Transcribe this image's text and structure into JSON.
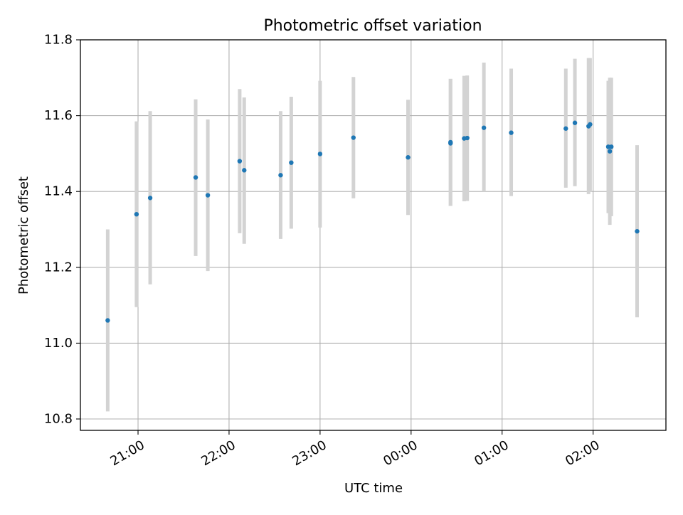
{
  "chart_data": {
    "type": "scatter",
    "title": "Photometric offset variation",
    "xlabel": "UTC time",
    "ylabel": "Photometric offset",
    "x_axis": {
      "type": "time",
      "range": [
        "20:22",
        "02:48"
      ],
      "ticks": [
        "21:00",
        "22:00",
        "23:00",
        "00:00",
        "01:00",
        "02:00"
      ]
    },
    "y_axis": {
      "range": [
        10.77,
        11.8
      ],
      "ticks": [
        "10.8",
        "11.0",
        "11.2",
        "11.4",
        "11.6",
        "11.8"
      ]
    },
    "grid": true,
    "colors": {
      "point": "#1f77b4",
      "errorbar": "#d3d3d3",
      "grid": "#b0b0b0"
    },
    "points": [
      {
        "x": "20:40",
        "y": 11.06,
        "low": 10.82,
        "high": 11.3
      },
      {
        "x": "20:59",
        "y": 11.34,
        "low": 11.095,
        "high": 11.585
      },
      {
        "x": "21:08",
        "y": 11.383,
        "low": 11.155,
        "high": 11.612
      },
      {
        "x": "21:38",
        "y": 11.437,
        "low": 11.23,
        "high": 11.643
      },
      {
        "x": "21:46",
        "y": 11.39,
        "low": 11.19,
        "high": 11.59
      },
      {
        "x": "22:07",
        "y": 11.48,
        "low": 11.29,
        "high": 11.67
      },
      {
        "x": "22:10",
        "y": 11.456,
        "low": 11.262,
        "high": 11.648
      },
      {
        "x": "22:34",
        "y": 11.443,
        "low": 11.275,
        "high": 11.612
      },
      {
        "x": "22:41",
        "y": 11.476,
        "low": 11.302,
        "high": 11.65
      },
      {
        "x": "23:00",
        "y": 11.499,
        "low": 11.305,
        "high": 11.692
      },
      {
        "x": "23:22",
        "y": 11.542,
        "low": 11.382,
        "high": 11.702
      },
      {
        "x": "23:58",
        "y": 11.49,
        "low": 11.338,
        "high": 11.642
      },
      {
        "x": "00:26",
        "y": 11.53,
        "low": 11.362,
        "high": 11.697
      },
      {
        "x": "00:26",
        "y": 11.527,
        "low": 11.362,
        "high": 11.697
      },
      {
        "x": "00:35",
        "y": 11.54,
        "low": 11.374,
        "high": 11.705
      },
      {
        "x": "00:37",
        "y": 11.541,
        "low": 11.375,
        "high": 11.706
      },
      {
        "x": "00:48",
        "y": 11.568,
        "low": 11.4,
        "high": 11.74
      },
      {
        "x": "01:06",
        "y": 11.555,
        "low": 11.388,
        "high": 11.724
      },
      {
        "x": "01:42",
        "y": 11.566,
        "low": 11.41,
        "high": 11.724
      },
      {
        "x": "01:48",
        "y": 11.581,
        "low": 11.414,
        "high": 11.75
      },
      {
        "x": "01:57",
        "y": 11.572,
        "low": 11.393,
        "high": 11.752
      },
      {
        "x": "01:58",
        "y": 11.577,
        "low": 11.4,
        "high": 11.752
      },
      {
        "x": "02:10",
        "y": 11.518,
        "low": 11.343,
        "high": 11.692
      },
      {
        "x": "02:11",
        "y": 11.506,
        "low": 11.312,
        "high": 11.7
      },
      {
        "x": "02:12",
        "y": 11.518,
        "low": 11.335,
        "high": 11.7
      },
      {
        "x": "02:29",
        "y": 11.295,
        "low": 11.068,
        "high": 11.522
      }
    ]
  }
}
